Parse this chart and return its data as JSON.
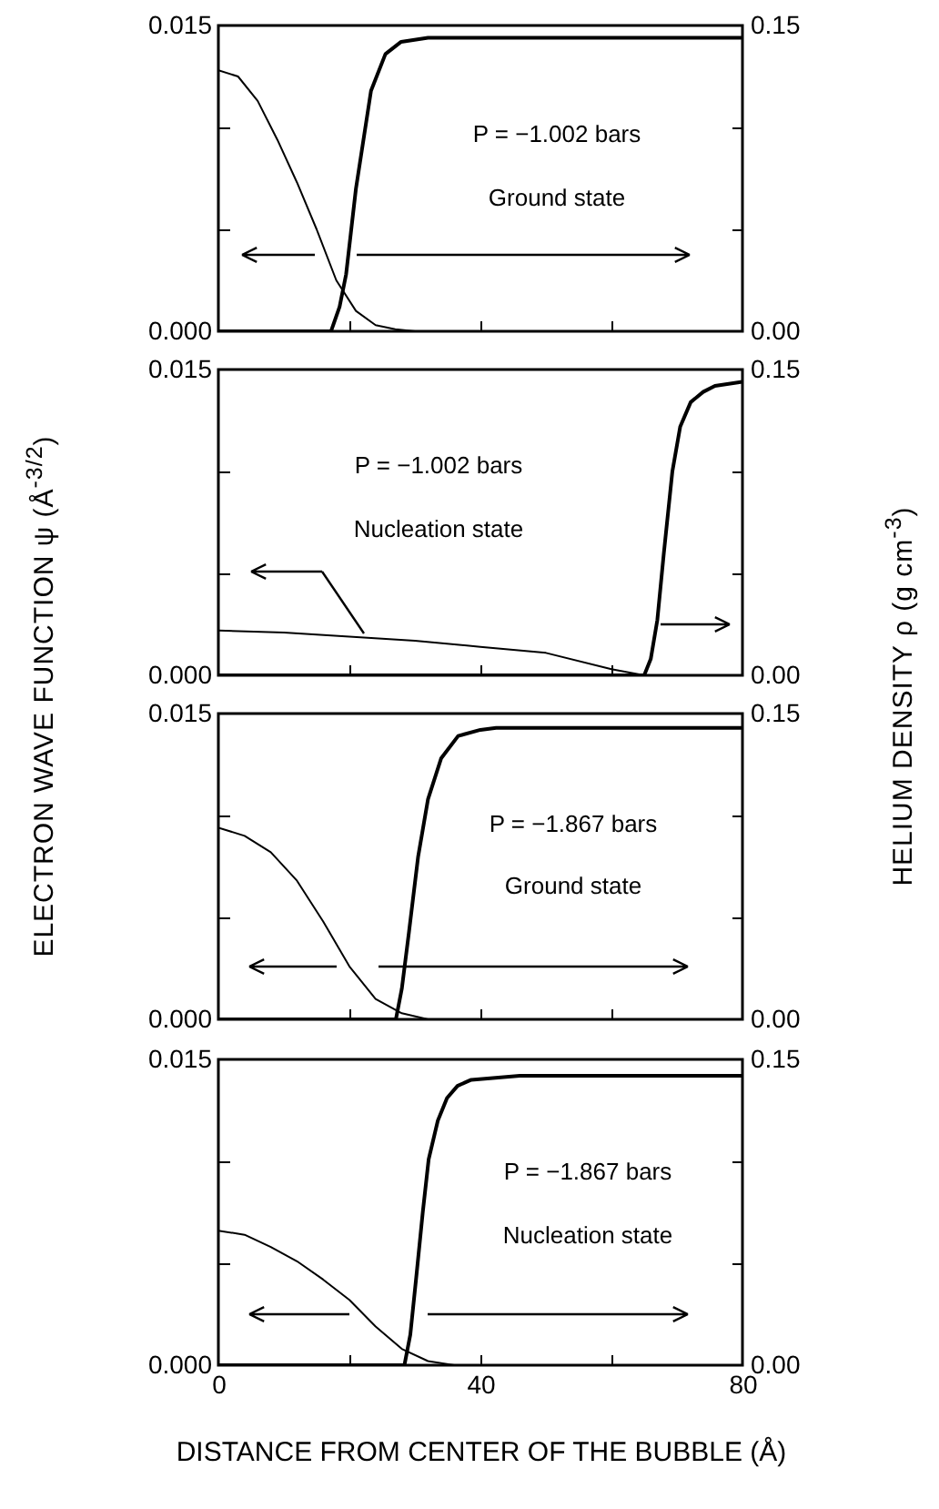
{
  "chart_data": [
    {
      "type": "line",
      "ylabel": "ELECTRON WAVE FUNCTION ψ (Å$^{-3/2}$)",
      "y2label": "HELIUM DENSITY ρ (g cm$^{-3}$)",
      "annotations": [
        "P = −1.002 bars",
        "Ground state"
      ],
      "xlim": [
        0,
        80
      ],
      "xticks": [
        0,
        20,
        40,
        60,
        80
      ],
      "ylim": [
        0,
        0.015
      ],
      "yticks": [
        {
          "value": 0,
          "label": "0.000"
        },
        {
          "value": 0.005,
          "label": null
        },
        {
          "value": 0.01,
          "label": null
        },
        {
          "value": 0.015,
          "label": "0.015"
        }
      ],
      "y2lim": [
        0,
        0.15
      ],
      "y2ticks": [
        {
          "value": 0,
          "label": "0.00"
        },
        {
          "value": 0.05,
          "label": null
        },
        {
          "value": 0.1,
          "label": null
        },
        {
          "value": 0.15,
          "label": "0.15"
        }
      ],
      "tick_labels": "y",
      "series": [
        {
          "color": "#000000",
          "x": [
            0,
            3,
            6,
            9,
            12,
            15,
            18,
            21,
            24,
            27,
            30,
            80
          ],
          "values": [
            0.0128,
            0.0125,
            0.0113,
            0.0094,
            0.0073,
            0.005,
            0.0025,
            0.001,
            0.0003,
            0.0001,
            0,
            0
          ]
        },
        {
          "color": "#000000",
          "axis": "y2",
          "x": [
            0,
            17.2,
            18.5,
            19.5,
            21,
            23.3,
            25.5,
            27.9,
            32,
            80
          ],
          "values": [
            0,
            0,
            0.012,
            0.028,
            0.07,
            0.118,
            0.136,
            0.142,
            0.144,
            0.144
          ]
        }
      ]
    },
    {
      "type": "line",
      "annotations": [
        "P = −1.002 bars",
        "Nucleation state"
      ],
      "xlim": [
        0,
        80
      ],
      "xticks": [
        0,
        20,
        40,
        60,
        80
      ],
      "ylim": [
        0,
        0.015
      ],
      "yticks": [
        {
          "value": 0,
          "label": "0.000"
        },
        {
          "value": 0.005,
          "label": null
        },
        {
          "value": 0.01,
          "label": null
        },
        {
          "value": 0.015,
          "label": "0.015"
        }
      ],
      "y2lim": [
        0,
        0.15
      ],
      "y2ticks": [
        {
          "value": 0,
          "label": "0.00"
        },
        {
          "value": 0.05,
          "label": null
        },
        {
          "value": 0.1,
          "label": null
        },
        {
          "value": 0.15,
          "label": "0.15"
        }
      ],
      "tick_labels": "y",
      "series": [
        {
          "color": "#000000",
          "x": [
            0,
            10,
            20,
            30,
            40,
            50,
            60,
            65,
            80
          ],
          "values": [
            0.0022,
            0.0021,
            0.0019,
            0.0017,
            0.0014,
            0.0011,
            0.0003,
            0,
            0
          ]
        },
        {
          "color": "#000000",
          "axis": "y2",
          "x": [
            0,
            65,
            66,
            67,
            68,
            69.3,
            70.5,
            72.1,
            74,
            75.8,
            80
          ],
          "values": [
            0,
            0,
            0.008,
            0.027,
            0.06,
            0.1,
            0.122,
            0.134,
            0.139,
            0.142,
            0.144
          ]
        }
      ]
    },
    {
      "type": "line",
      "annotations": [
        "P = −1.867 bars",
        "Ground state"
      ],
      "xlim": [
        0,
        80
      ],
      "xticks": [
        0,
        20,
        40,
        60,
        80
      ],
      "ylim": [
        0,
        0.015
      ],
      "yticks": [
        {
          "value": 0,
          "label": "0.000"
        },
        {
          "value": 0.005,
          "label": null
        },
        {
          "value": 0.01,
          "label": null
        },
        {
          "value": 0.015,
          "label": "0.015"
        }
      ],
      "y2lim": [
        0,
        0.15
      ],
      "y2ticks": [
        {
          "value": 0,
          "label": "0.00"
        },
        {
          "value": 0.05,
          "label": null
        },
        {
          "value": 0.1,
          "label": null
        },
        {
          "value": 0.15,
          "label": "0.15"
        }
      ],
      "tick_labels": "y",
      "series": [
        {
          "color": "#000000",
          "x": [
            0,
            4,
            8,
            12,
            16,
            20,
            24,
            28,
            32,
            80
          ],
          "values": [
            0.0094,
            0.009,
            0.0082,
            0.0068,
            0.0048,
            0.0026,
            0.001,
            0.0003,
            0,
            0
          ]
        },
        {
          "color": "#000000",
          "axis": "y2",
          "x": [
            0,
            27.1,
            28,
            29.1,
            30.5,
            32,
            34,
            36.6,
            40,
            42.4,
            80
          ],
          "values": [
            0,
            0,
            0.015,
            0.043,
            0.08,
            0.108,
            0.128,
            0.139,
            0.142,
            0.143,
            0.143
          ]
        }
      ]
    },
    {
      "type": "line",
      "xlabel": "DISTANCE FROM CENTER OF THE BUBBLE (Å)",
      "annotations": [
        "P = −1.867 bars",
        "Nucleation state"
      ],
      "xlim": [
        0,
        80
      ],
      "xticks": [
        0,
        {
          "value": 20,
          "label": null
        },
        40,
        {
          "value": 60,
          "label": null
        },
        80
      ],
      "ylim": [
        0,
        0.015
      ],
      "yticks": [
        {
          "value": 0,
          "label": "0.000"
        },
        {
          "value": 0.005,
          "label": null
        },
        {
          "value": 0.01,
          "label": null
        },
        {
          "value": 0.015,
          "label": "0.015"
        }
      ],
      "y2lim": [
        0,
        0.15
      ],
      "y2ticks": [
        {
          "value": 0,
          "label": "0.00"
        },
        {
          "value": 0.05,
          "label": null
        },
        {
          "value": 0.1,
          "label": null
        },
        {
          "value": 0.15,
          "label": "0.15"
        }
      ],
      "series": [
        {
          "color": "#000000",
          "x": [
            0,
            4,
            8,
            12,
            16,
            20,
            24,
            28,
            32,
            36,
            80
          ],
          "values": [
            0.0066,
            0.0064,
            0.0058,
            0.0051,
            0.0042,
            0.0032,
            0.0019,
            0.0008,
            0.0002,
            0,
            0
          ]
        },
        {
          "color": "#000000",
          "axis": "y2",
          "x": [
            0,
            28.4,
            29.3,
            30.2,
            31.2,
            32.1,
            33.5,
            34.9,
            36.5,
            38.6,
            46,
            80
          ],
          "values": [
            0,
            0,
            0.015,
            0.043,
            0.075,
            0.101,
            0.12,
            0.131,
            0.137,
            0.14,
            0.142,
            0.142
          ]
        }
      ]
    }
  ]
}
